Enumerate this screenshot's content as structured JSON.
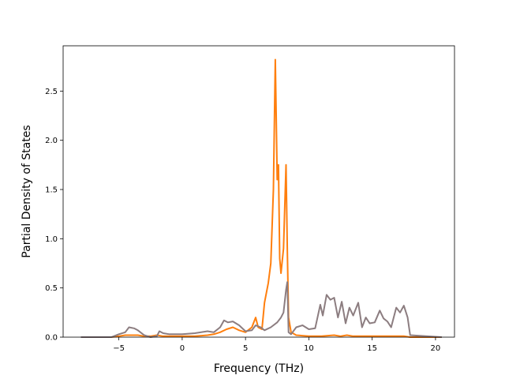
{
  "chart_data": {
    "type": "line",
    "title": "",
    "xlabel": "Frequency (THz)",
    "ylabel": "Partial Density of States",
    "xlim": [
      -9.4,
      21.5
    ],
    "ylim": [
      0.0,
      2.96
    ],
    "x_ticks": [
      -5,
      0,
      5,
      10,
      15,
      20
    ],
    "x_tick_labels": [
      "−5",
      "0",
      "5",
      "10",
      "15",
      "20"
    ],
    "y_ticks": [
      0.0,
      0.5,
      1.0,
      1.5,
      2.0,
      2.5
    ],
    "y_tick_labels": [
      "0.0",
      "0.5",
      "1.0",
      "1.5",
      "2.0",
      "2.5"
    ],
    "grid": false,
    "legend": "none",
    "series": [
      {
        "color": "#ff7f0e",
        "x": [
          -8.0,
          -5.6,
          -5.0,
          -4.5,
          -4.0,
          -3.5,
          -3.0,
          -2.5,
          -2.0,
          -1.5,
          -1.0,
          0.0,
          1.0,
          2.0,
          2.5,
          3.0,
          3.5,
          4.0,
          4.5,
          5.0,
          5.5,
          5.8,
          6.0,
          6.3,
          6.5,
          6.8,
          7.0,
          7.2,
          7.35,
          7.5,
          7.6,
          7.7,
          7.8,
          8.0,
          8.2,
          8.3,
          8.4,
          8.6,
          9.0,
          10.0,
          11.0,
          12.0,
          12.5,
          13.0,
          13.5,
          14.0,
          15.0,
          16.0,
          17.0,
          17.5,
          18.0,
          20.5
        ],
        "y": [
          0.0,
          0.0,
          0.01,
          0.02,
          0.02,
          0.02,
          0.01,
          0.01,
          0.02,
          0.01,
          0.01,
          0.01,
          0.01,
          0.02,
          0.03,
          0.05,
          0.08,
          0.1,
          0.07,
          0.05,
          0.1,
          0.2,
          0.1,
          0.08,
          0.35,
          0.55,
          0.75,
          1.5,
          2.82,
          1.6,
          1.75,
          0.8,
          0.65,
          0.9,
          1.75,
          0.9,
          0.2,
          0.05,
          0.02,
          0.01,
          0.01,
          0.02,
          0.01,
          0.02,
          0.01,
          0.01,
          0.01,
          0.01,
          0.01,
          0.01,
          0.0,
          0.0
        ]
      },
      {
        "color": "#8c7d80",
        "x": [
          -8.0,
          -5.6,
          -5.0,
          -4.5,
          -4.2,
          -3.8,
          -3.5,
          -3.0,
          -2.5,
          -2.0,
          -1.8,
          -1.5,
          -1.0,
          0.0,
          1.0,
          2.0,
          2.5,
          3.0,
          3.3,
          3.6,
          4.0,
          4.5,
          5.0,
          5.5,
          5.8,
          6.2,
          6.5,
          7.0,
          7.5,
          7.8,
          8.0,
          8.2,
          8.3,
          8.4,
          8.6,
          9.0,
          9.5,
          10.0,
          10.5,
          10.9,
          11.1,
          11.4,
          11.7,
          12.0,
          12.3,
          12.6,
          12.9,
          13.2,
          13.5,
          13.9,
          14.2,
          14.5,
          14.8,
          15.2,
          15.6,
          15.9,
          16.2,
          16.5,
          16.9,
          17.2,
          17.5,
          17.8,
          18.0,
          20.5
        ],
        "y": [
          0.0,
          0.0,
          0.03,
          0.05,
          0.1,
          0.09,
          0.07,
          0.02,
          0.0,
          0.01,
          0.06,
          0.04,
          0.03,
          0.03,
          0.04,
          0.06,
          0.05,
          0.1,
          0.17,
          0.15,
          0.16,
          0.12,
          0.06,
          0.07,
          0.12,
          0.1,
          0.07,
          0.1,
          0.15,
          0.2,
          0.25,
          0.48,
          0.56,
          0.05,
          0.03,
          0.1,
          0.12,
          0.08,
          0.09,
          0.33,
          0.22,
          0.43,
          0.38,
          0.4,
          0.2,
          0.36,
          0.14,
          0.3,
          0.22,
          0.35,
          0.1,
          0.2,
          0.14,
          0.15,
          0.27,
          0.19,
          0.16,
          0.1,
          0.3,
          0.25,
          0.32,
          0.2,
          0.02,
          0.0
        ]
      }
    ]
  }
}
